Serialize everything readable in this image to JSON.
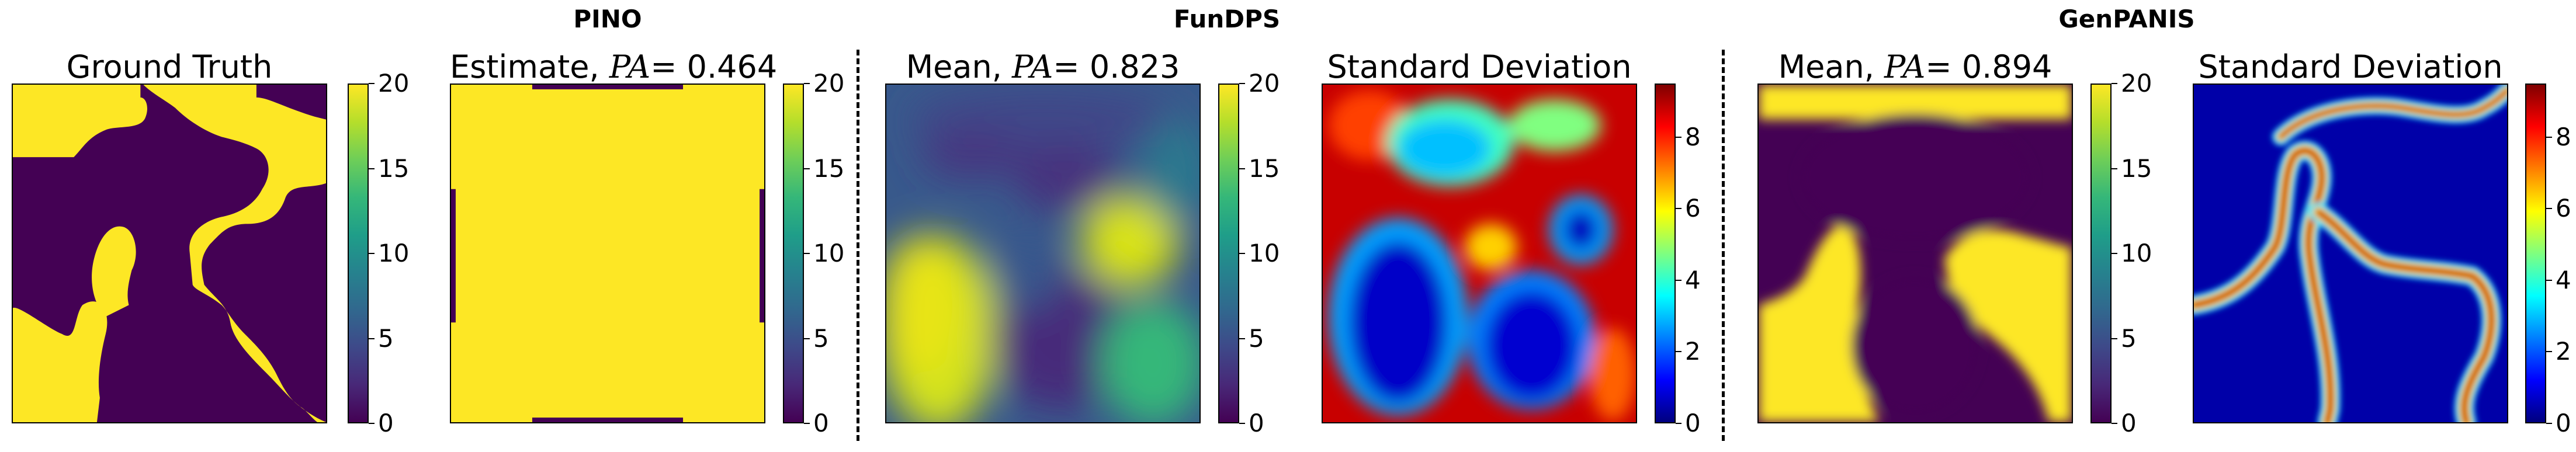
{
  "group_titles": {
    "pino": "PINO",
    "fundps": "FunDPS",
    "genpanis": "GenPANIS"
  },
  "chart_data": [
    {
      "type": "heatmap",
      "title": "Ground Truth",
      "colormap": "viridis",
      "clim": [
        0,
        20
      ],
      "colorbar_ticks": [
        0,
        5,
        10,
        15,
        20
      ]
    },
    {
      "type": "heatmap",
      "title": "Estimate, PA = 0.464",
      "title_prefix": "Estimate, ",
      "title_metric": "PA",
      "title_value": "= 0.464",
      "colormap": "viridis",
      "clim": [
        0,
        20
      ],
      "colorbar_ticks": [
        0,
        5,
        10,
        15,
        20
      ]
    },
    {
      "type": "heatmap",
      "title": "Mean, PA = 0.823",
      "title_prefix": "Mean, ",
      "title_metric": "PA",
      "title_value": "= 0.823",
      "colormap": "viridis",
      "clim": [
        0,
        20
      ],
      "colorbar_ticks": [
        0,
        5,
        10,
        15,
        20
      ]
    },
    {
      "type": "heatmap",
      "title": "Standard Deviation",
      "colormap": "jet",
      "clim": [
        0,
        9.5
      ],
      "colorbar_ticks": [
        0,
        2,
        4,
        6,
        8
      ]
    },
    {
      "type": "heatmap",
      "title": "Mean, PA = 0.894",
      "title_prefix": "Mean, ",
      "title_metric": "PA",
      "title_value": "= 0.894",
      "colormap": "viridis",
      "clim": [
        0,
        20
      ],
      "colorbar_ticks": [
        0,
        5,
        10,
        15,
        20
      ]
    },
    {
      "type": "heatmap",
      "title": "Standard Deviation",
      "colormap": "jet",
      "clim": [
        0,
        9.5
      ],
      "colorbar_ticks": [
        0,
        2,
        4,
        6,
        8
      ]
    }
  ],
  "colors": {
    "viridis_low": "#440154",
    "viridis_high": "#fde725",
    "jet_low": "#00007f",
    "jet_high": "#7f0000"
  }
}
